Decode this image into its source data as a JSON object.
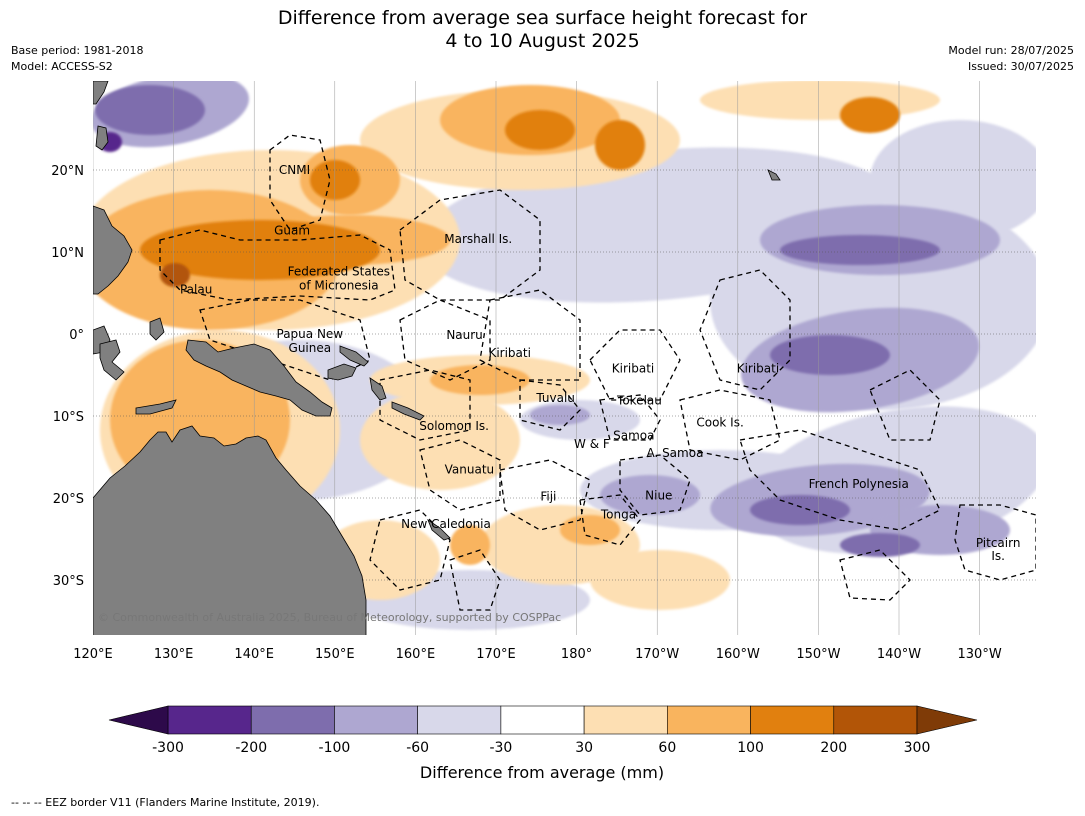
{
  "title": {
    "line1": "Difference from average sea surface height forecast for",
    "line2": "4 to 10 August 2025"
  },
  "meta": {
    "base_period": "Base period: 1981-2018",
    "model": "Model: ACCESS-S2",
    "model_run": "Model run: 28/07/2025",
    "issued": "Issued: 30/07/2025"
  },
  "map": {
    "lon_ticks": [
      "120°E",
      "130°E",
      "140°E",
      "150°E",
      "160°E",
      "170°E",
      "180°",
      "170°W",
      "160°W",
      "150°W",
      "140°W",
      "130°W"
    ],
    "lat_ticks": [
      "20°N",
      "10°N",
      "0°",
      "10°S",
      "20°S",
      "30°S"
    ],
    "land_color": "#808080",
    "eez_labels": [
      {
        "text": "CNMI",
        "lon": 145,
        "lat": 20
      },
      {
        "text": "Guam",
        "lon": 144.7,
        "lat": 12.6
      },
      {
        "text": "Marshall Is.",
        "lon": 167.8,
        "lat": 11.6
      },
      {
        "text": "Federated States",
        "lon": 150.5,
        "lat": 7.6
      },
      {
        "text": "of Micronesia",
        "lon": 150.5,
        "lat": 5.9
      },
      {
        "text": "Palau",
        "lon": 132.8,
        "lat": 5.4
      },
      {
        "text": "Papua New",
        "lon": 146.9,
        "lat": 0
      },
      {
        "text": "Guinea",
        "lon": 146.9,
        "lat": -1.7
      },
      {
        "text": "Nauru",
        "lon": 166.1,
        "lat": -0.1
      },
      {
        "text": "Kiribati",
        "lon": 171.7,
        "lat": -2.3
      },
      {
        "text": "Kiribati",
        "lon": -173,
        "lat": -4.2
      },
      {
        "text": "Kiribati",
        "lon": -157.5,
        "lat": -4.2
      },
      {
        "text": "Tuvalu",
        "lon": 177.4,
        "lat": -7.8
      },
      {
        "text": "Tokelau",
        "lon": -172.2,
        "lat": -8.1
      },
      {
        "text": "Solomon Is.",
        "lon": 164.8,
        "lat": -11.2
      },
      {
        "text": "Cook Is.",
        "lon": -162.2,
        "lat": -10.8
      },
      {
        "text": "W & F",
        "lon": -178.1,
        "lat": -13.4
      },
      {
        "text": "Samoa",
        "lon": -172.9,
        "lat": -12.4
      },
      {
        "text": "A. Samoa",
        "lon": -167.8,
        "lat": -14.5
      },
      {
        "text": "Vanuatu",
        "lon": 166.7,
        "lat": -16.5
      },
      {
        "text": "French Polynesia",
        "lon": -145,
        "lat": -18.3
      },
      {
        "text": "Fiji",
        "lon": 176.5,
        "lat": -19.8
      },
      {
        "text": "Niue",
        "lon": -169.8,
        "lat": -19.7
      },
      {
        "text": "Tonga",
        "lon": -174.8,
        "lat": -22
      },
      {
        "text": "New Caledonia",
        "lon": 163.8,
        "lat": -23.2
      },
      {
        "text": "Pitcairn",
        "lon": -127.7,
        "lat": -25.5
      },
      {
        "text": "Is.",
        "lon": -127.7,
        "lat": -27.1
      }
    ],
    "copyright": "© Commonwealth of Australia 2025, Bureau of Meteorology, supported by COSPPac"
  },
  "colorbar": {
    "ticks": [
      "-300",
      "-200",
      "-100",
      "-60",
      "-30",
      "30",
      "60",
      "100",
      "200",
      "300"
    ],
    "colors": [
      "#57268c",
      "#7e6dad",
      "#aea7d1",
      "#d8d8ea",
      "#ffffff",
      "#fddfb3",
      "#f9b45e",
      "#e1800f",
      "#b25507"
    ],
    "under_color": "#2d0a4a",
    "over_color": "#7f3b07",
    "label": "Difference from average (mm)"
  },
  "footer": "--  --  -- EEZ border V11 (Flanders Marine Institute, 2019)."
}
